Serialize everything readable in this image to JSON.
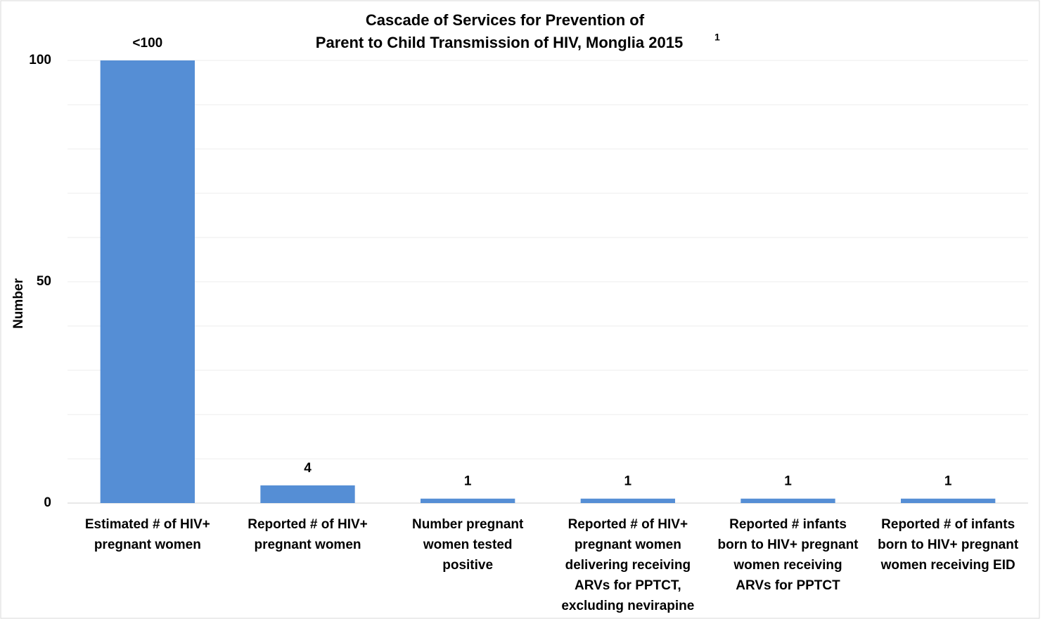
{
  "chart_data": {
    "type": "bar",
    "title": [
      "Cascade of Services for Prevention of",
      "Parent to Child Transmission of HIV, Monglia 2015"
    ],
    "title_superscript": "1",
    "y_label": "Number",
    "categories": [
      [
        "Estimated # of HIV+",
        "pregnant women"
      ],
      [
        "Reported # of HIV+",
        "pregnant women"
      ],
      [
        "Number pregnant",
        "women tested",
        "positive"
      ],
      [
        "Reported # of HIV+",
        "pregnant women",
        "delivering receiving",
        "ARVs for PPTCT,",
        "excluding nevirapine"
      ],
      [
        "Reported # infants",
        "born to HIV+ pregnant",
        "women receiving",
        "ARVs for PPTCT"
      ],
      [
        "Reported # of infants",
        "born to HIV+ pregnant",
        "women receiving EID"
      ]
    ],
    "values": [
      100,
      4,
      1,
      1,
      1,
      1
    ],
    "value_labels": [
      "<100",
      "4",
      "1",
      "1",
      "1",
      "1"
    ],
    "color": "#558ed5",
    "ylim": [
      0,
      100
    ],
    "yticks": [
      0,
      50,
      100
    ],
    "minor_gridlines": [
      10,
      20,
      30,
      40,
      60,
      70,
      80,
      90
    ],
    "grid": true
  }
}
